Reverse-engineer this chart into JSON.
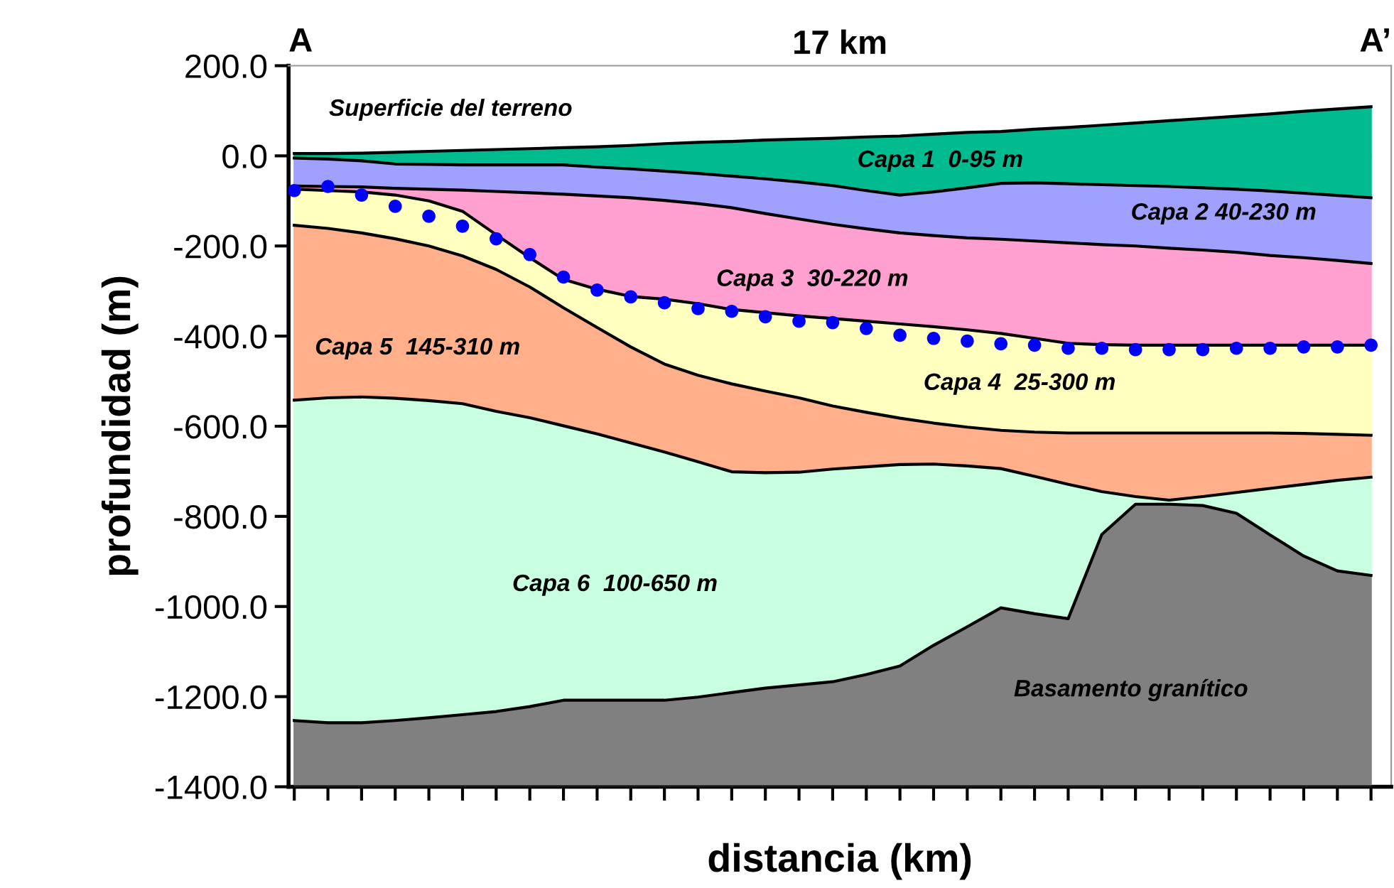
{
  "chart_data": {
    "type": "area",
    "title": "17 km",
    "xlabel": "distancia (km)",
    "ylabel": "profundidad (m)",
    "categories": [
      null,
      null,
      null,
      null,
      null,
      null,
      null,
      null,
      null,
      null,
      null,
      null,
      null,
      null,
      null,
      null,
      null,
      null,
      null,
      null,
      null,
      null,
      null,
      null,
      null,
      null,
      null,
      null,
      null,
      null,
      null,
      null,
      null
    ],
    "ylim": [
      -1400,
      200
    ],
    "yticks": [
      {
        "value": 200,
        "label": "200.0"
      },
      {
        "value": 0,
        "label": "0.0"
      },
      {
        "value": -200,
        "label": "-200.0"
      },
      {
        "value": -400,
        "label": "-400.0"
      },
      {
        "value": -600,
        "label": "-600.0"
      },
      {
        "value": -800,
        "label": "-800.0"
      },
      {
        "value": -1000,
        "label": "-1000.0"
      },
      {
        "value": -1200,
        "label": "-1200.0"
      },
      {
        "value": -1400,
        "label": "-1400.0"
      }
    ],
    "series": [
      {
        "color": "#00bb90",
        "values": [
          5,
          5,
          6,
          8,
          10,
          12,
          14,
          16,
          18,
          20,
          23,
          27,
          30,
          32,
          35,
          37,
          39,
          42,
          44,
          48,
          52,
          54,
          59,
          63,
          68,
          73,
          78,
          83,
          88,
          93,
          99,
          104,
          109
        ]
      },
      {
        "color": "#00bb90",
        "values": [
          -5,
          -7,
          -11,
          -18,
          -19,
          -20,
          -20,
          -20,
          -20,
          -25,
          -29,
          -34,
          -39,
          -45,
          -51,
          -58,
          -66,
          -77,
          -87,
          -80,
          -71,
          -61,
          -60,
          -62,
          -64,
          -66,
          -68,
          -71,
          -74,
          -78,
          -83,
          -88,
          -93
        ]
      },
      {
        "color": "#a0a0ff",
        "values": [
          -67,
          -68,
          -69,
          -72,
          -74,
          -76,
          -79,
          -82,
          -85,
          -89,
          -93,
          -99,
          -106,
          -115,
          -128,
          -140,
          -152,
          -162,
          -171,
          -177,
          -182,
          -185,
          -189,
          -193,
          -197,
          -200,
          -205,
          -209,
          -214,
          -221,
          -226,
          -232,
          -239
        ]
      },
      {
        "color": "#ffa0d0",
        "values": [
          -74,
          -77,
          -80,
          -87,
          -100,
          -123,
          -175,
          -226,
          -274,
          -296,
          -312,
          -318,
          -328,
          -341,
          -348,
          -355,
          -361,
          -367,
          -373,
          -379,
          -386,
          -394,
          -405,
          -416,
          -419,
          -420,
          -420,
          -420,
          -420,
          -420,
          -420,
          -420,
          -420
        ]
      },
      {
        "color": "#ffffc0",
        "values": [
          -154,
          -161,
          -171,
          -184,
          -200,
          -222,
          -252,
          -291,
          -337,
          -381,
          -424,
          -462,
          -487,
          -506,
          -522,
          -537,
          -555,
          -569,
          -582,
          -593,
          -602,
          -609,
          -613,
          -615,
          -615,
          -615,
          -615,
          -615,
          -615,
          -615,
          -616,
          -618,
          -620
        ]
      },
      {
        "color": "#ffb08a",
        "values": [
          -542,
          -537,
          -535,
          -538,
          -543,
          -550,
          -567,
          -581,
          -599,
          -617,
          -637,
          -657,
          -679,
          -701,
          -703,
          -702,
          -695,
          -690,
          -685,
          -684,
          -688,
          -694,
          -711,
          -729,
          -745,
          -756,
          -764,
          -756,
          -747,
          -738,
          -729,
          -720,
          -713
        ]
      },
      {
        "color": "#c8ffe0",
        "values": [
          -1253,
          -1258,
          -1258,
          -1253,
          -1247,
          -1240,
          -1233,
          -1222,
          -1208,
          -1208,
          -1208,
          -1208,
          -1201,
          -1191,
          -1181,
          -1174,
          -1167,
          -1151,
          -1132,
          -1086,
          -1045,
          -1003,
          -1016,
          -1027,
          -840,
          -773,
          -773,
          -776,
          -793,
          -841,
          -888,
          -921,
          -931
        ]
      },
      {
        "color": "#808080",
        "values": [
          -1400,
          -1400,
          -1400,
          -1400,
          -1400,
          -1400,
          -1400,
          -1400,
          -1400,
          -1400,
          -1400,
          -1400,
          -1400,
          -1400,
          -1400,
          -1400,
          -1400,
          -1400,
          -1400,
          -1400,
          -1400,
          -1400,
          -1400,
          -1400,
          -1400,
          -1400,
          -1400,
          -1400,
          -1400,
          -1400,
          -1400,
          -1400,
          -1400
        ]
      },
      {
        "type": "scatter",
        "marker": "circle",
        "color": "#0000ff",
        "values": [
          -77,
          -68,
          -87,
          -112,
          -134,
          -156,
          -184,
          -219,
          -269,
          -298,
          -313,
          -326,
          -339,
          -345,
          -357,
          -367,
          -370,
          -383,
          -398,
          -405,
          -411,
          -417,
          -420,
          -427,
          -427,
          -430,
          -430,
          -430,
          -427,
          -427,
          -424,
          -424,
          -420
        ]
      }
    ],
    "annotations": [
      "A",
      "A’",
      "Superficie del terreno",
      "Capa 1  0-95 m",
      "Capa 2 40-230 m",
      "Capa 3  30-220 m",
      "Capa 4  25-300 m",
      "Capa 5  145-310 m",
      "Capa 6  100-650 m",
      "Basamento granítico"
    ]
  }
}
